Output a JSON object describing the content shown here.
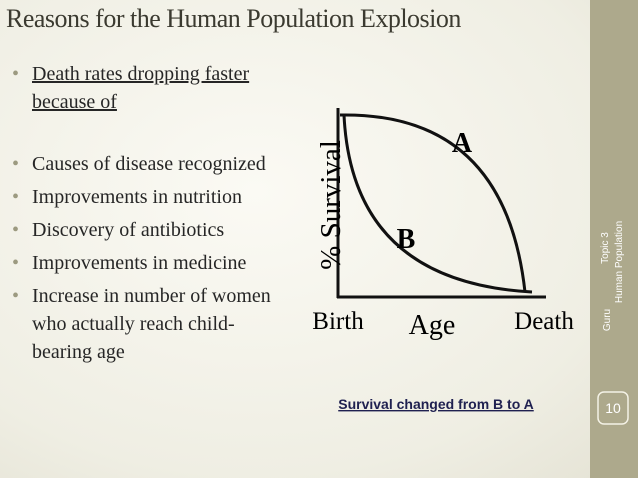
{
  "title": "Reasons for the Human Population Explosion",
  "bullets": [
    {
      "text": "Death rates dropping faster because of",
      "underline": true
    },
    {
      "text": "Causes of disease recognized"
    },
    {
      "text": "Improvements in nutrition"
    },
    {
      "text": "Discovery of antibiotics"
    },
    {
      "text": "Improvements in medicine"
    },
    {
      "text": "Increase in number of women who actually reach child-bearing age"
    }
  ],
  "diagram": {
    "y_label": "% Survival",
    "x_labels": [
      "Birth",
      "Age",
      "Death"
    ],
    "curves": [
      "A",
      "B"
    ],
    "caption": "Survival changed from B to A"
  },
  "sidebar": {
    "topic": "Topic 3",
    "subtitle": "Human Population",
    "author": "Guru",
    "page": "10"
  }
}
